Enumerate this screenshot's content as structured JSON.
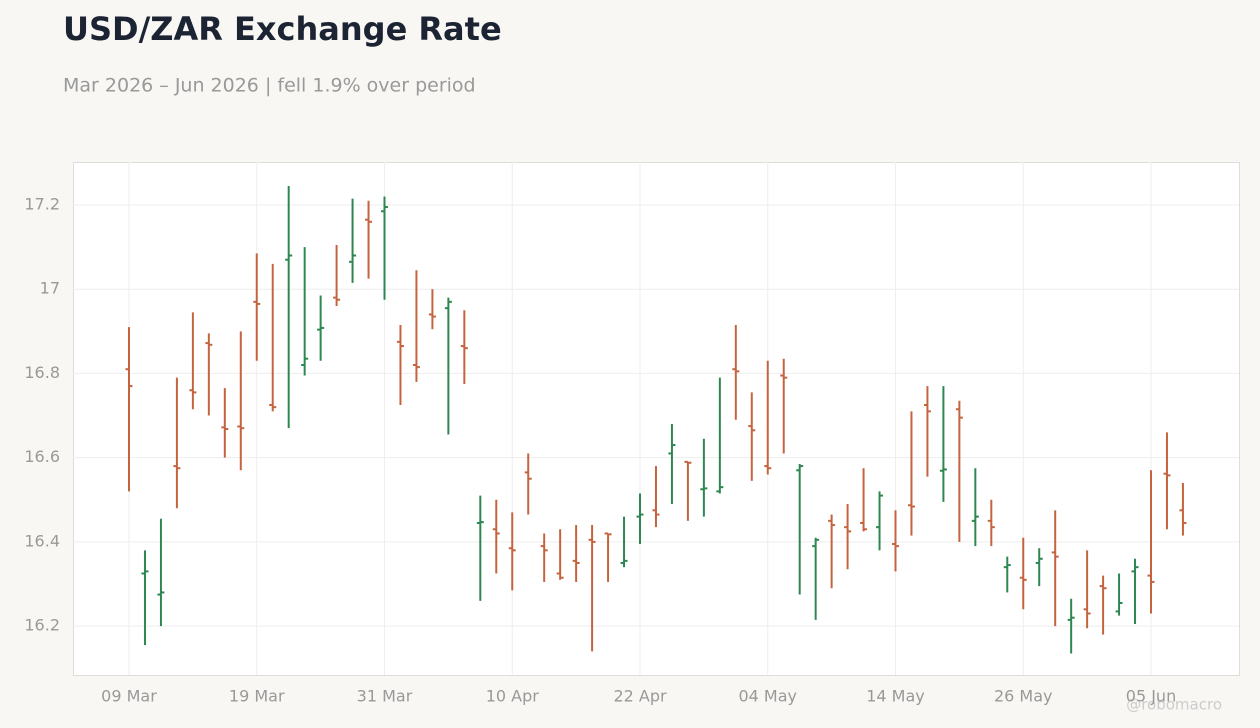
{
  "chart_data": {
    "type": "ohlc",
    "title": "USD/ZAR Exchange Rate",
    "subtitle": "Mar 2026 – Jun 2026 | fell 1.9% over period",
    "watermark": "@robomacro",
    "categories": [
      "09 Mar",
      null,
      null,
      null,
      null,
      null,
      null,
      null,
      "19 Mar",
      null,
      null,
      null,
      null,
      null,
      null,
      null,
      "31 Mar",
      null,
      null,
      null,
      null,
      null,
      null,
      null,
      "10 Apr",
      null,
      null,
      null,
      null,
      null,
      null,
      null,
      "22 Apr",
      null,
      null,
      null,
      null,
      null,
      null,
      null,
      "04 May",
      null,
      null,
      null,
      null,
      null,
      null,
      null,
      "14 May",
      null,
      null,
      null,
      null,
      null,
      null,
      null,
      "26 May",
      null,
      null,
      null,
      null,
      null,
      null,
      null,
      "05 Jun",
      null,
      null
    ],
    "open": [
      16.81,
      16.325,
      16.275,
      16.58,
      16.76,
      16.872,
      16.672,
      16.674,
      16.97,
      16.725,
      17.07,
      16.82,
      16.904,
      16.98,
      17.065,
      17.165,
      17.185,
      16.875,
      16.82,
      16.94,
      16.955,
      16.865,
      16.445,
      16.43,
      16.385,
      16.565,
      16.39,
      16.325,
      16.355,
      16.405,
      16.42,
      16.35,
      16.46,
      16.475,
      16.61,
      16.59,
      16.525,
      16.52,
      16.81,
      16.675,
      16.58,
      16.795,
      16.57,
      16.39,
      16.45,
      16.435,
      16.445,
      16.435,
      16.395,
      16.487,
      16.725,
      16.569,
      16.715,
      16.45,
      16.45,
      16.34,
      16.315,
      16.35,
      16.375,
      16.215,
      16.24,
      16.295,
      16.235,
      16.33,
      16.32,
      16.562,
      16.475
    ],
    "high": [
      16.91,
      16.38,
      16.455,
      16.79,
      16.945,
      16.895,
      16.765,
      16.9,
      17.085,
      17.06,
      17.245,
      17.1,
      16.985,
      17.105,
      17.215,
      17.21,
      17.22,
      16.915,
      17.045,
      17.0,
      16.98,
      16.95,
      16.51,
      16.5,
      16.47,
      16.61,
      16.42,
      16.43,
      16.44,
      16.44,
      16.42,
      16.46,
      16.515,
      16.58,
      16.68,
      16.59,
      16.645,
      16.79,
      16.915,
      16.755,
      16.83,
      16.835,
      16.585,
      16.41,
      16.465,
      16.49,
      16.575,
      16.52,
      16.475,
      16.71,
      16.77,
      16.77,
      16.735,
      16.575,
      16.5,
      16.365,
      16.41,
      16.385,
      16.475,
      16.265,
      16.38,
      16.32,
      16.325,
      16.36,
      16.57,
      16.66,
      16.54
    ],
    "low": [
      16.52,
      16.155,
      16.2,
      16.48,
      16.715,
      16.7,
      16.6,
      16.57,
      16.83,
      16.71,
      16.67,
      16.795,
      16.83,
      16.96,
      17.015,
      17.025,
      16.975,
      16.725,
      16.78,
      16.905,
      16.655,
      16.775,
      16.26,
      16.325,
      16.285,
      16.465,
      16.305,
      16.31,
      16.305,
      16.14,
      16.305,
      16.34,
      16.395,
      16.435,
      16.49,
      16.45,
      16.46,
      16.515,
      16.69,
      16.545,
      16.56,
      16.61,
      16.275,
      16.215,
      16.29,
      16.335,
      16.425,
      16.38,
      16.33,
      16.415,
      16.555,
      16.495,
      16.4,
      16.39,
      16.39,
      16.28,
      16.24,
      16.295,
      16.2,
      16.135,
      16.195,
      16.18,
      16.225,
      16.205,
      16.23,
      16.43,
      16.415
    ],
    "close": [
      16.77,
      16.33,
      16.28,
      16.575,
      16.755,
      16.868,
      16.668,
      16.67,
      16.965,
      16.72,
      17.08,
      16.835,
      16.908,
      16.975,
      17.08,
      17.16,
      17.195,
      16.865,
      16.815,
      16.935,
      16.97,
      16.86,
      16.447,
      16.42,
      16.38,
      16.55,
      16.38,
      16.315,
      16.35,
      16.4,
      16.418,
      16.355,
      16.465,
      16.465,
      16.63,
      16.588,
      16.527,
      16.53,
      16.805,
      16.665,
      16.575,
      16.79,
      16.58,
      16.405,
      16.44,
      16.425,
      16.43,
      16.51,
      16.39,
      16.484,
      16.71,
      16.572,
      16.695,
      16.46,
      16.435,
      16.345,
      16.31,
      16.36,
      16.365,
      16.22,
      16.23,
      16.29,
      16.255,
      16.34,
      16.305,
      16.558,
      16.445
    ],
    "up_color": "#2e8650",
    "down_color": "#c4643f",
    "ylim": [
      16.084,
      17.302
    ],
    "yticks": [
      16.2,
      16.4,
      16.6,
      16.8,
      17,
      17.2
    ],
    "grid": true
  }
}
